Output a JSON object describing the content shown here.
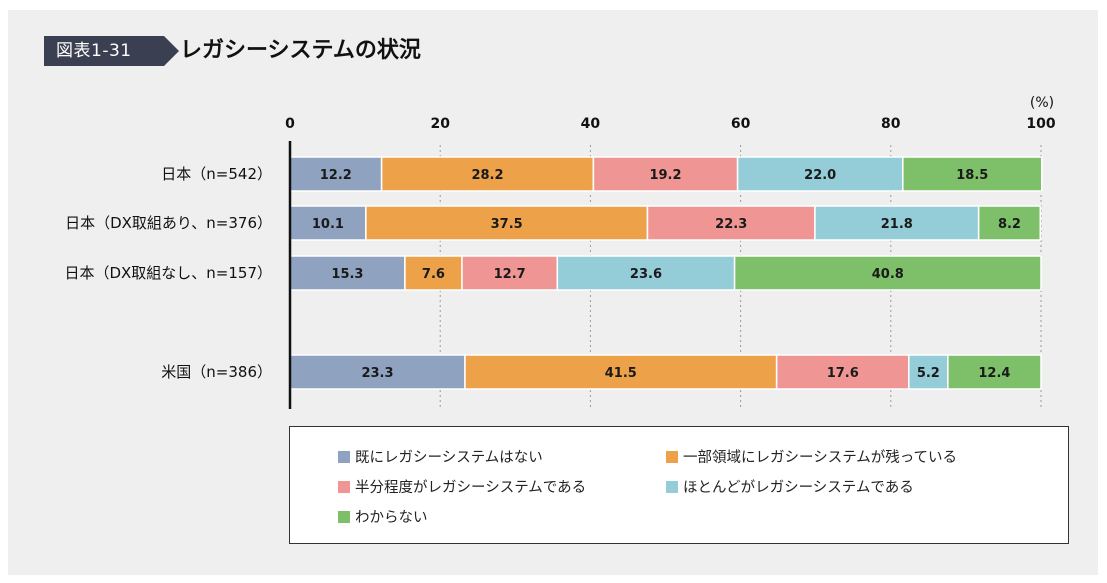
{
  "figure": {
    "badge": "図表1-31",
    "title": "レガシーシステムの状況"
  },
  "chart_data": {
    "type": "bar",
    "orientation": "horizontal",
    "stacked": true,
    "unit_label": "(%)",
    "xlim": [
      0,
      100
    ],
    "xticks": [
      0,
      20,
      40,
      60,
      80,
      100
    ],
    "categories": [
      "日本（n=542）",
      "日本（DX取組あり、n=376）",
      "日本（DX取組なし、n=157）",
      "米国（n=386）"
    ],
    "series": [
      {
        "name": "既にレガシーシステムはない",
        "color": "#8fa3c0",
        "values": [
          12.2,
          10.1,
          15.3,
          23.3
        ]
      },
      {
        "name": "一部領域にレガシーシステムが残っている",
        "color": "#eda24a",
        "values": [
          28.2,
          37.5,
          7.6,
          41.5
        ]
      },
      {
        "name": "半分程度がレガシーシステムである",
        "color": "#ef9594",
        "values": [
          19.2,
          22.3,
          12.7,
          17.6
        ]
      },
      {
        "name": "ほとんどがレガシーシステムである",
        "color": "#94ccd8",
        "values": [
          22.0,
          21.8,
          23.6,
          5.2
        ]
      },
      {
        "name": "わからない",
        "color": "#7ec06a",
        "values": [
          18.5,
          8.2,
          40.8,
          12.4
        ]
      }
    ],
    "legend_position": "bottom",
    "grid": "dotted vertical"
  },
  "colors": {
    "badge_bg": "#3b3f52",
    "panel_bg": "#efefef"
  }
}
